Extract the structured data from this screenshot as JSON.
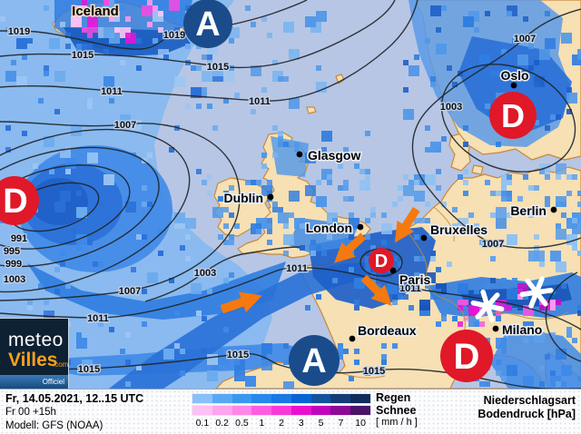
{
  "map": {
    "region_label": "Iceland",
    "cities": [
      {
        "name": "Glasgow"
      },
      {
        "name": "Dublin"
      },
      {
        "name": "London"
      },
      {
        "name": "Bruxelles"
      },
      {
        "name": "Paris"
      },
      {
        "name": "Berlin"
      },
      {
        "name": "Oslo"
      },
      {
        "name": "Milano"
      },
      {
        "name": "Bordeaux"
      }
    ],
    "pressure_systems": [
      {
        "label": "A",
        "type": "high"
      },
      {
        "label": "D",
        "type": "low"
      },
      {
        "label": "D",
        "type": "low"
      },
      {
        "label": "D",
        "type": "low"
      },
      {
        "label": "D",
        "type": "low"
      },
      {
        "label": "A",
        "type": "high"
      }
    ],
    "isobar_labels": [
      "1019",
      "1019",
      "1015",
      "1015",
      "1011",
      "1011",
      "1007",
      "1007",
      "1003",
      "991",
      "995",
      "999",
      "1003",
      "1007",
      "1011",
      "1003",
      "1011",
      "1011",
      "1007",
      "1015",
      "1015",
      "1015"
    ],
    "colors": {
      "sea": "#b7c6e4",
      "land": "#f6e0b4",
      "coast": "#c8883c",
      "high_badge": "#1a4c8c",
      "low_badge": "#e01828",
      "arrow": "#f5790f",
      "snowflake": "#ffffff"
    }
  },
  "footer": {
    "date_line": "Fr, 14.05.2021, 12..15 UTC",
    "run_line": "Fr 00 +15h",
    "model_line": "Modell: GFS (NOAA)",
    "legend": {
      "rain_label": "Regen",
      "snow_label": "Schnee",
      "unit_label": "[ mm / h ]",
      "ticks": [
        "0.1",
        "0.2",
        "0.5",
        "1",
        "2",
        "3",
        "5",
        "7",
        "10"
      ],
      "rain_colors": [
        "#88c0f8",
        "#58a8f4",
        "#3898f0",
        "#2888ec",
        "#1878e4",
        "#0864d4",
        "#15529e",
        "#153c78",
        "#0f2c5a"
      ],
      "snow_colors": [
        "#ffc0f4",
        "#ffa4ee",
        "#ff86e8",
        "#fe5ce2",
        "#f83ada",
        "#ea10d0",
        "#c204bc",
        "#8e0a94",
        "#4a1468"
      ]
    },
    "right_line1": "Niederschlagsart",
    "right_line2": "Bodendruck [hPa]"
  },
  "logo": {
    "word1": "meteo",
    "word2": "Villes",
    "suffix": ".com",
    "badge": "Officiel"
  }
}
